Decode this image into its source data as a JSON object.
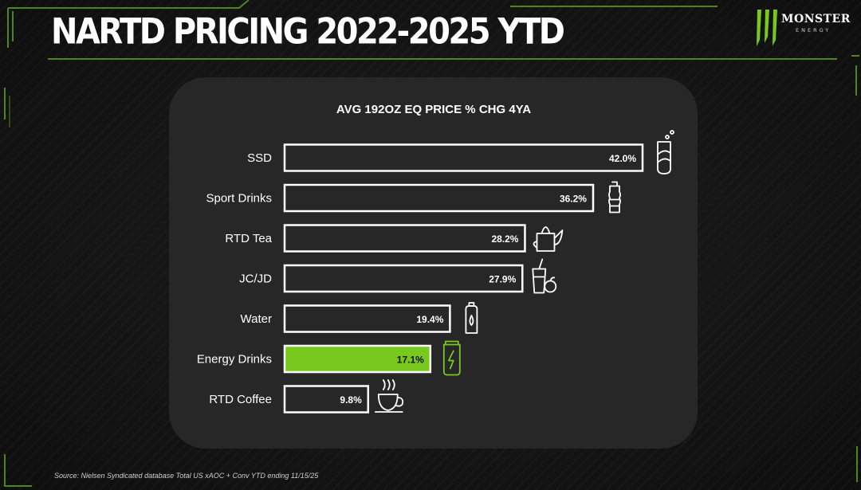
{
  "slide": {
    "title": "NARTD PRICING 2022-2025 YTD",
    "source": "Source: Nielsen Syndicated database Total US xAOC + Conv YTD ending 11/15/25"
  },
  "brand": {
    "name": "MONSTER",
    "sub": "ENERGY",
    "accent_color": "#78c81e"
  },
  "chart_data": {
    "type": "bar",
    "orientation": "horizontal",
    "title": "AVG 192OZ EQ PRICE % CHG 4YA",
    "xlabel": "",
    "ylabel": "",
    "xlim": [
      0,
      42
    ],
    "grid": false,
    "categories": [
      "SSD",
      "Sport Drinks",
      "RTD Tea",
      "JC/JD",
      "Water",
      "Energy Drinks",
      "RTD Coffee"
    ],
    "values": [
      42.0,
      36.2,
      28.2,
      27.9,
      19.4,
      17.1,
      9.8
    ],
    "value_labels": [
      "42.0%",
      "36.2%",
      "28.2%",
      "27.9%",
      "19.4%",
      "17.1%",
      "9.8%"
    ],
    "icons": [
      "soda-can-icon",
      "sport-bottle-icon",
      "kettle-icon",
      "juice-glass-apple-icon",
      "water-bottle-icon",
      "energy-can-icon",
      "coffee-cup-icon"
    ],
    "highlight": "Energy Drinks",
    "bar_color": "#272727",
    "bar_outline": "#ffffff",
    "highlight_color": "#78c81e"
  }
}
